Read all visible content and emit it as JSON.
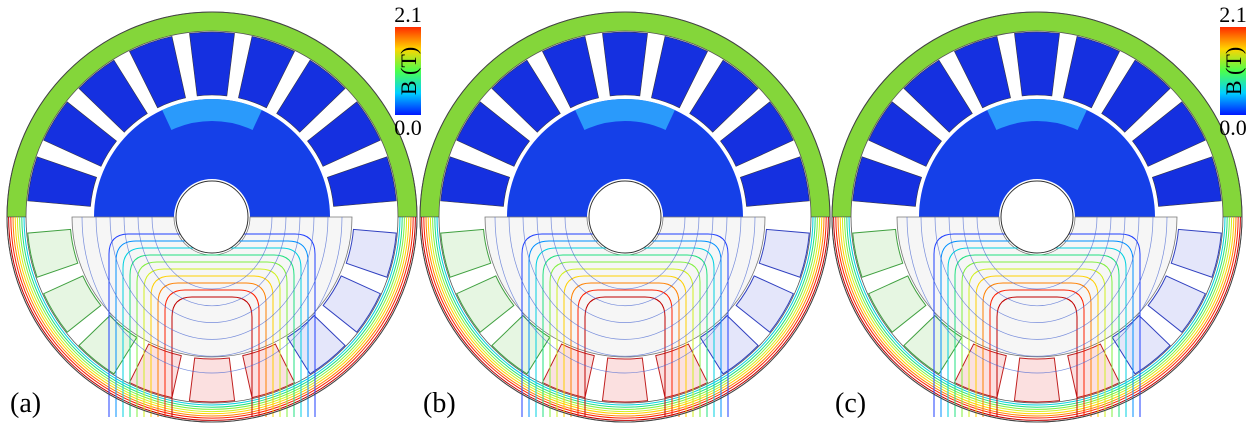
{
  "panels": [
    {
      "label": "(a)",
      "colorbar": {
        "max": "2.1",
        "title": "B (T)",
        "min": "0.0"
      }
    },
    {
      "label": "(b)"
    },
    {
      "label": "(c)",
      "colorbar": {
        "max": "2.1",
        "title": "B (T)",
        "min": "0.0"
      }
    }
  ]
}
